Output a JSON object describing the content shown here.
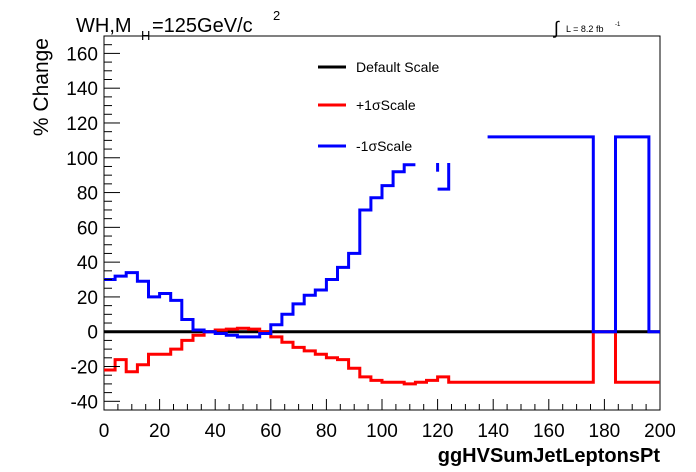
{
  "header": {
    "title_main": "WH,M",
    "title_sub": "H",
    "title_rest": "=125GeV/c",
    "title_sup": "2",
    "lumi_int": "∫",
    "lumi_text": "L = 8.2 fb",
    "lumi_sup": "-1"
  },
  "chart_data": {
    "type": "line",
    "xlabel": "ggHVSumJetLeptonsPt",
    "ylabel": "% Change",
    "xlim": [
      0,
      200
    ],
    "ylim": [
      -45,
      170
    ],
    "x_ticks": [
      0,
      20,
      40,
      60,
      80,
      100,
      120,
      140,
      160,
      180,
      200
    ],
    "y_ticks": [
      -40,
      -20,
      0,
      20,
      40,
      60,
      80,
      100,
      120,
      140,
      160
    ],
    "legend_position": "top-center",
    "grid": false,
    "series": [
      {
        "name": "Default Scale",
        "color": "#000000",
        "x": [
          0,
          200
        ],
        "y": [
          0,
          0
        ]
      },
      {
        "name": "+1σScale",
        "color": "#ff0000",
        "x": [
          0,
          4,
          4,
          8,
          8,
          12,
          12,
          16,
          16,
          24,
          24,
          28,
          28,
          32,
          32,
          36,
          36,
          40,
          40,
          44,
          44,
          48,
          48,
          52,
          52,
          56,
          56,
          60,
          60,
          64,
          64,
          68,
          68,
          72,
          72,
          76,
          76,
          80,
          80,
          84,
          84,
          88,
          88,
          92,
          92,
          96,
          96,
          100,
          100,
          104,
          104,
          108,
          108,
          112,
          112,
          116,
          116,
          120,
          120,
          124,
          124,
          128,
          128,
          176,
          176,
          184,
          184,
          196,
          196,
          200
        ],
        "y": [
          -22,
          -22,
          -16,
          -16,
          -23,
          -23,
          -19,
          -19,
          -13,
          -13,
          -10,
          -10,
          -5,
          -5,
          -2,
          -2,
          0,
          0,
          1,
          1,
          1.5,
          1.5,
          2,
          2,
          1.5,
          1.5,
          0,
          0,
          -3,
          -3,
          -6,
          -6,
          -9,
          -9,
          -11,
          -11,
          -13,
          -13,
          -15,
          -15,
          -16,
          -16,
          -21,
          -21,
          -26,
          -26,
          -28,
          -28,
          -29,
          -29,
          -29,
          -29,
          -30,
          -30,
          -29,
          -29,
          -28,
          -28,
          -26,
          -26,
          -29,
          -29,
          -29,
          -29,
          0,
          0,
          -29,
          -29,
          -29,
          -29
        ]
      },
      {
        "name": "-1σScale",
        "color": "#0000ff",
        "x": [
          0,
          4,
          4,
          8,
          8,
          12,
          12,
          16,
          16,
          20,
          20,
          24,
          24,
          28,
          28,
          32,
          32,
          36,
          36,
          40,
          40,
          44,
          44,
          48,
          48,
          56,
          56,
          60,
          60,
          64,
          64,
          68,
          68,
          72,
          72,
          76,
          76,
          80,
          80,
          84,
          84,
          88,
          88,
          92,
          92,
          96,
          96,
          100,
          100,
          104,
          104,
          108,
          108,
          112
        ],
        "y": [
          30,
          30,
          32,
          32,
          34,
          34,
          29,
          29,
          20,
          20,
          22,
          22,
          18,
          18,
          7,
          7,
          1,
          1,
          0,
          0,
          -1,
          -1,
          -2,
          -2,
          -3,
          -3,
          -1,
          -1,
          4,
          4,
          10,
          10,
          16,
          16,
          21,
          21,
          24,
          24,
          30,
          30,
          37,
          37,
          45,
          45,
          70,
          70,
          77,
          77,
          84,
          84,
          92,
          92,
          96,
          96
        ],
        "extra_segments": [
          {
            "x": [
              120,
              120
            ],
            "y": [
              92,
              97
            ]
          },
          {
            "x": [
              120,
              124,
              124,
              124
            ],
            "y": [
              82,
              82,
              82,
              97
            ]
          },
          {
            "x": [
              138,
              176,
              176,
              184,
              184,
              196,
              196,
              200
            ],
            "y": [
              112,
              112,
              0,
              0,
              112,
              112,
              0,
              0
            ]
          }
        ]
      }
    ]
  }
}
